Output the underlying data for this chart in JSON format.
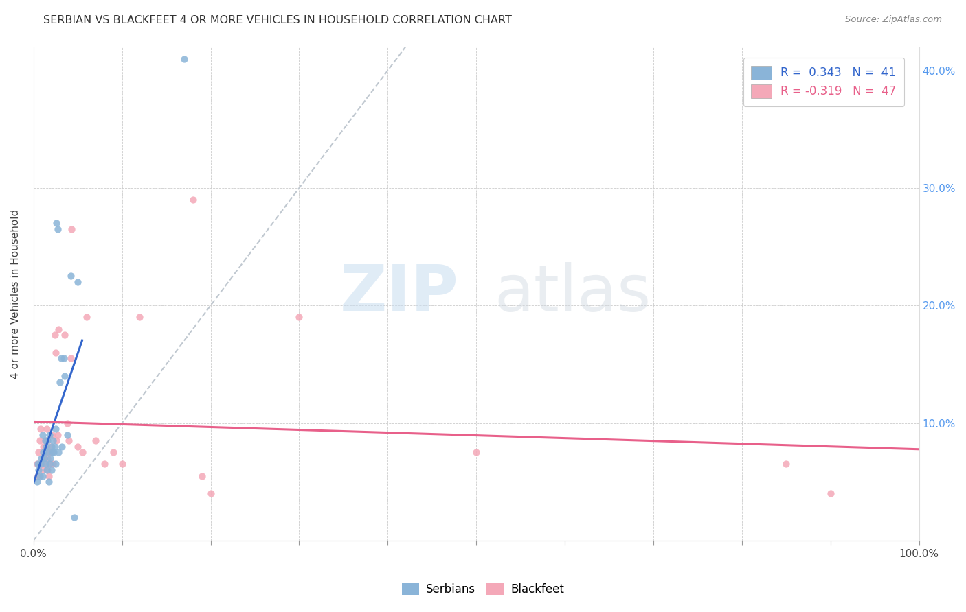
{
  "title": "SERBIAN VS BLACKFEET 4 OR MORE VEHICLES IN HOUSEHOLD CORRELATION CHART",
  "source": "Source: ZipAtlas.com",
  "ylabel": "4 or more Vehicles in Household",
  "xlim": [
    0.0,
    1.0
  ],
  "ylim": [
    0.0,
    0.42
  ],
  "x_ticks": [
    0.0,
    0.1,
    0.2,
    0.3,
    0.4,
    0.5,
    0.6,
    0.7,
    0.8,
    0.9,
    1.0
  ],
  "x_tick_labels": [
    "0.0%",
    "",
    "",
    "",
    "",
    "",
    "",
    "",
    "",
    "",
    "100.0%"
  ],
  "y_ticks": [
    0.0,
    0.1,
    0.2,
    0.3,
    0.4
  ],
  "y_tick_labels_right": [
    "",
    "10.0%",
    "20.0%",
    "30.0%",
    "40.0%"
  ],
  "serbian_color": "#8ab4d8",
  "blackfeet_color": "#f4a8b8",
  "serbian_line_color": "#3366cc",
  "blackfeet_line_color": "#e8608a",
  "diagonal_color": "#c0c8d0",
  "R_serbian": 0.343,
  "N_serbian": 41,
  "R_blackfeet": -0.319,
  "N_blackfeet": 47,
  "watermark_zip": "ZIP",
  "watermark_atlas": "atlas",
  "serbian_x": [
    0.004,
    0.005,
    0.006,
    0.007,
    0.008,
    0.009,
    0.01,
    0.01,
    0.011,
    0.012,
    0.013,
    0.013,
    0.014,
    0.015,
    0.016,
    0.016,
    0.017,
    0.018,
    0.018,
    0.019,
    0.02,
    0.02,
    0.021,
    0.022,
    0.023,
    0.024,
    0.025,
    0.025,
    0.026,
    0.027,
    0.028,
    0.03,
    0.031,
    0.032,
    0.034,
    0.035,
    0.038,
    0.042,
    0.046,
    0.05,
    0.17
  ],
  "serbian_y": [
    0.05,
    0.065,
    0.06,
    0.055,
    0.065,
    0.07,
    0.055,
    0.09,
    0.075,
    0.07,
    0.085,
    0.065,
    0.08,
    0.06,
    0.075,
    0.085,
    0.05,
    0.065,
    0.09,
    0.07,
    0.06,
    0.08,
    0.075,
    0.085,
    0.075,
    0.08,
    0.065,
    0.095,
    0.27,
    0.265,
    0.075,
    0.135,
    0.155,
    0.08,
    0.155,
    0.14,
    0.09,
    0.225,
    0.02,
    0.22,
    0.41
  ],
  "blackfeet_x": [
    0.004,
    0.005,
    0.006,
    0.007,
    0.008,
    0.009,
    0.01,
    0.011,
    0.012,
    0.013,
    0.013,
    0.014,
    0.015,
    0.016,
    0.016,
    0.017,
    0.018,
    0.019,
    0.019,
    0.02,
    0.021,
    0.022,
    0.024,
    0.025,
    0.026,
    0.027,
    0.028,
    0.035,
    0.038,
    0.04,
    0.042,
    0.043,
    0.05,
    0.055,
    0.06,
    0.07,
    0.08,
    0.09,
    0.1,
    0.12,
    0.18,
    0.19,
    0.2,
    0.3,
    0.5,
    0.85,
    0.9
  ],
  "blackfeet_y": [
    0.065,
    0.055,
    0.075,
    0.085,
    0.095,
    0.065,
    0.06,
    0.08,
    0.07,
    0.075,
    0.065,
    0.085,
    0.095,
    0.06,
    0.07,
    0.055,
    0.075,
    0.08,
    0.065,
    0.075,
    0.09,
    0.065,
    0.175,
    0.16,
    0.085,
    0.09,
    0.18,
    0.175,
    0.1,
    0.085,
    0.155,
    0.265,
    0.08,
    0.075,
    0.19,
    0.085,
    0.065,
    0.075,
    0.065,
    0.19,
    0.29,
    0.055,
    0.04,
    0.19,
    0.075,
    0.065,
    0.04
  ],
  "serbian_line_x0": 0.0,
  "serbian_line_x1": 0.055,
  "blackfeet_line_x0": 0.0,
  "blackfeet_line_x1": 1.0
}
